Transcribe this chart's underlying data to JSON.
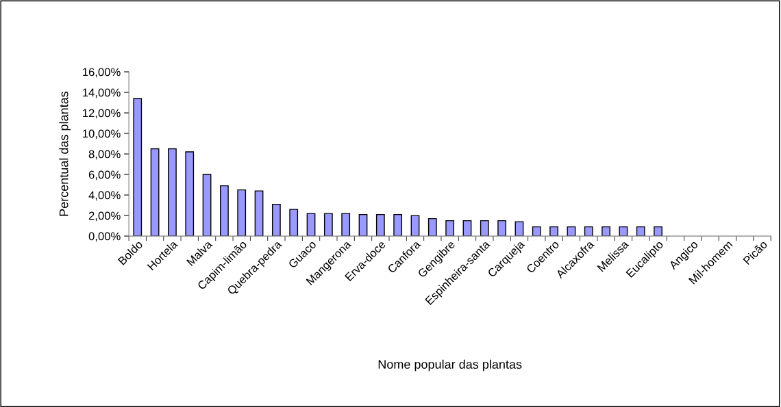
{
  "chart_data": {
    "type": "bar",
    "xlabel": "Nome popular das plantas",
    "ylabel": "Percentual das plantas",
    "categories": [
      "Boldo",
      null,
      "Hortela",
      null,
      "Malva",
      null,
      "Capim-limão",
      null,
      "Quebra-pedra",
      null,
      "Guaco",
      null,
      "Mangerona",
      null,
      "Erva-doce",
      null,
      "Canfora",
      null,
      "Gengibre",
      null,
      "Espinheira-santa",
      null,
      "Carqueja",
      null,
      "Coentro",
      null,
      "Alcaxofra",
      null,
      "Melissa",
      null,
      "Eucalipto",
      null,
      "Angico",
      null,
      "Mil-homem",
      null,
      "Picão"
    ],
    "values": [
      13.4,
      8.5,
      8.5,
      8.2,
      6.0,
      4.9,
      4.5,
      4.4,
      3.1,
      2.6,
      2.2,
      2.2,
      2.2,
      2.1,
      2.1,
      2.1,
      2.0,
      1.7,
      1.5,
      1.5,
      1.5,
      1.5,
      1.4,
      0.9,
      0.9,
      0.9,
      0.9,
      0.9,
      0.9,
      0.9,
      0.9,
      null,
      null,
      null,
      null,
      null,
      null
    ],
    "color": "#9999ff",
    "ylim": [
      0,
      16
    ],
    "yticks": [
      {
        "value": 0,
        "label": "0,00%"
      },
      {
        "value": 2,
        "label": "2,00%"
      },
      {
        "value": 4,
        "label": "4,00%"
      },
      {
        "value": 6,
        "label": "6,00%"
      },
      {
        "value": 8,
        "label": "8,00%"
      },
      {
        "value": 10,
        "label": "10,00%"
      },
      {
        "value": 12,
        "label": "12,00%"
      },
      {
        "value": 14,
        "label": "14,00%"
      },
      {
        "value": 16,
        "label": "16,00%"
      }
    ],
    "grid": false,
    "legend": false
  }
}
